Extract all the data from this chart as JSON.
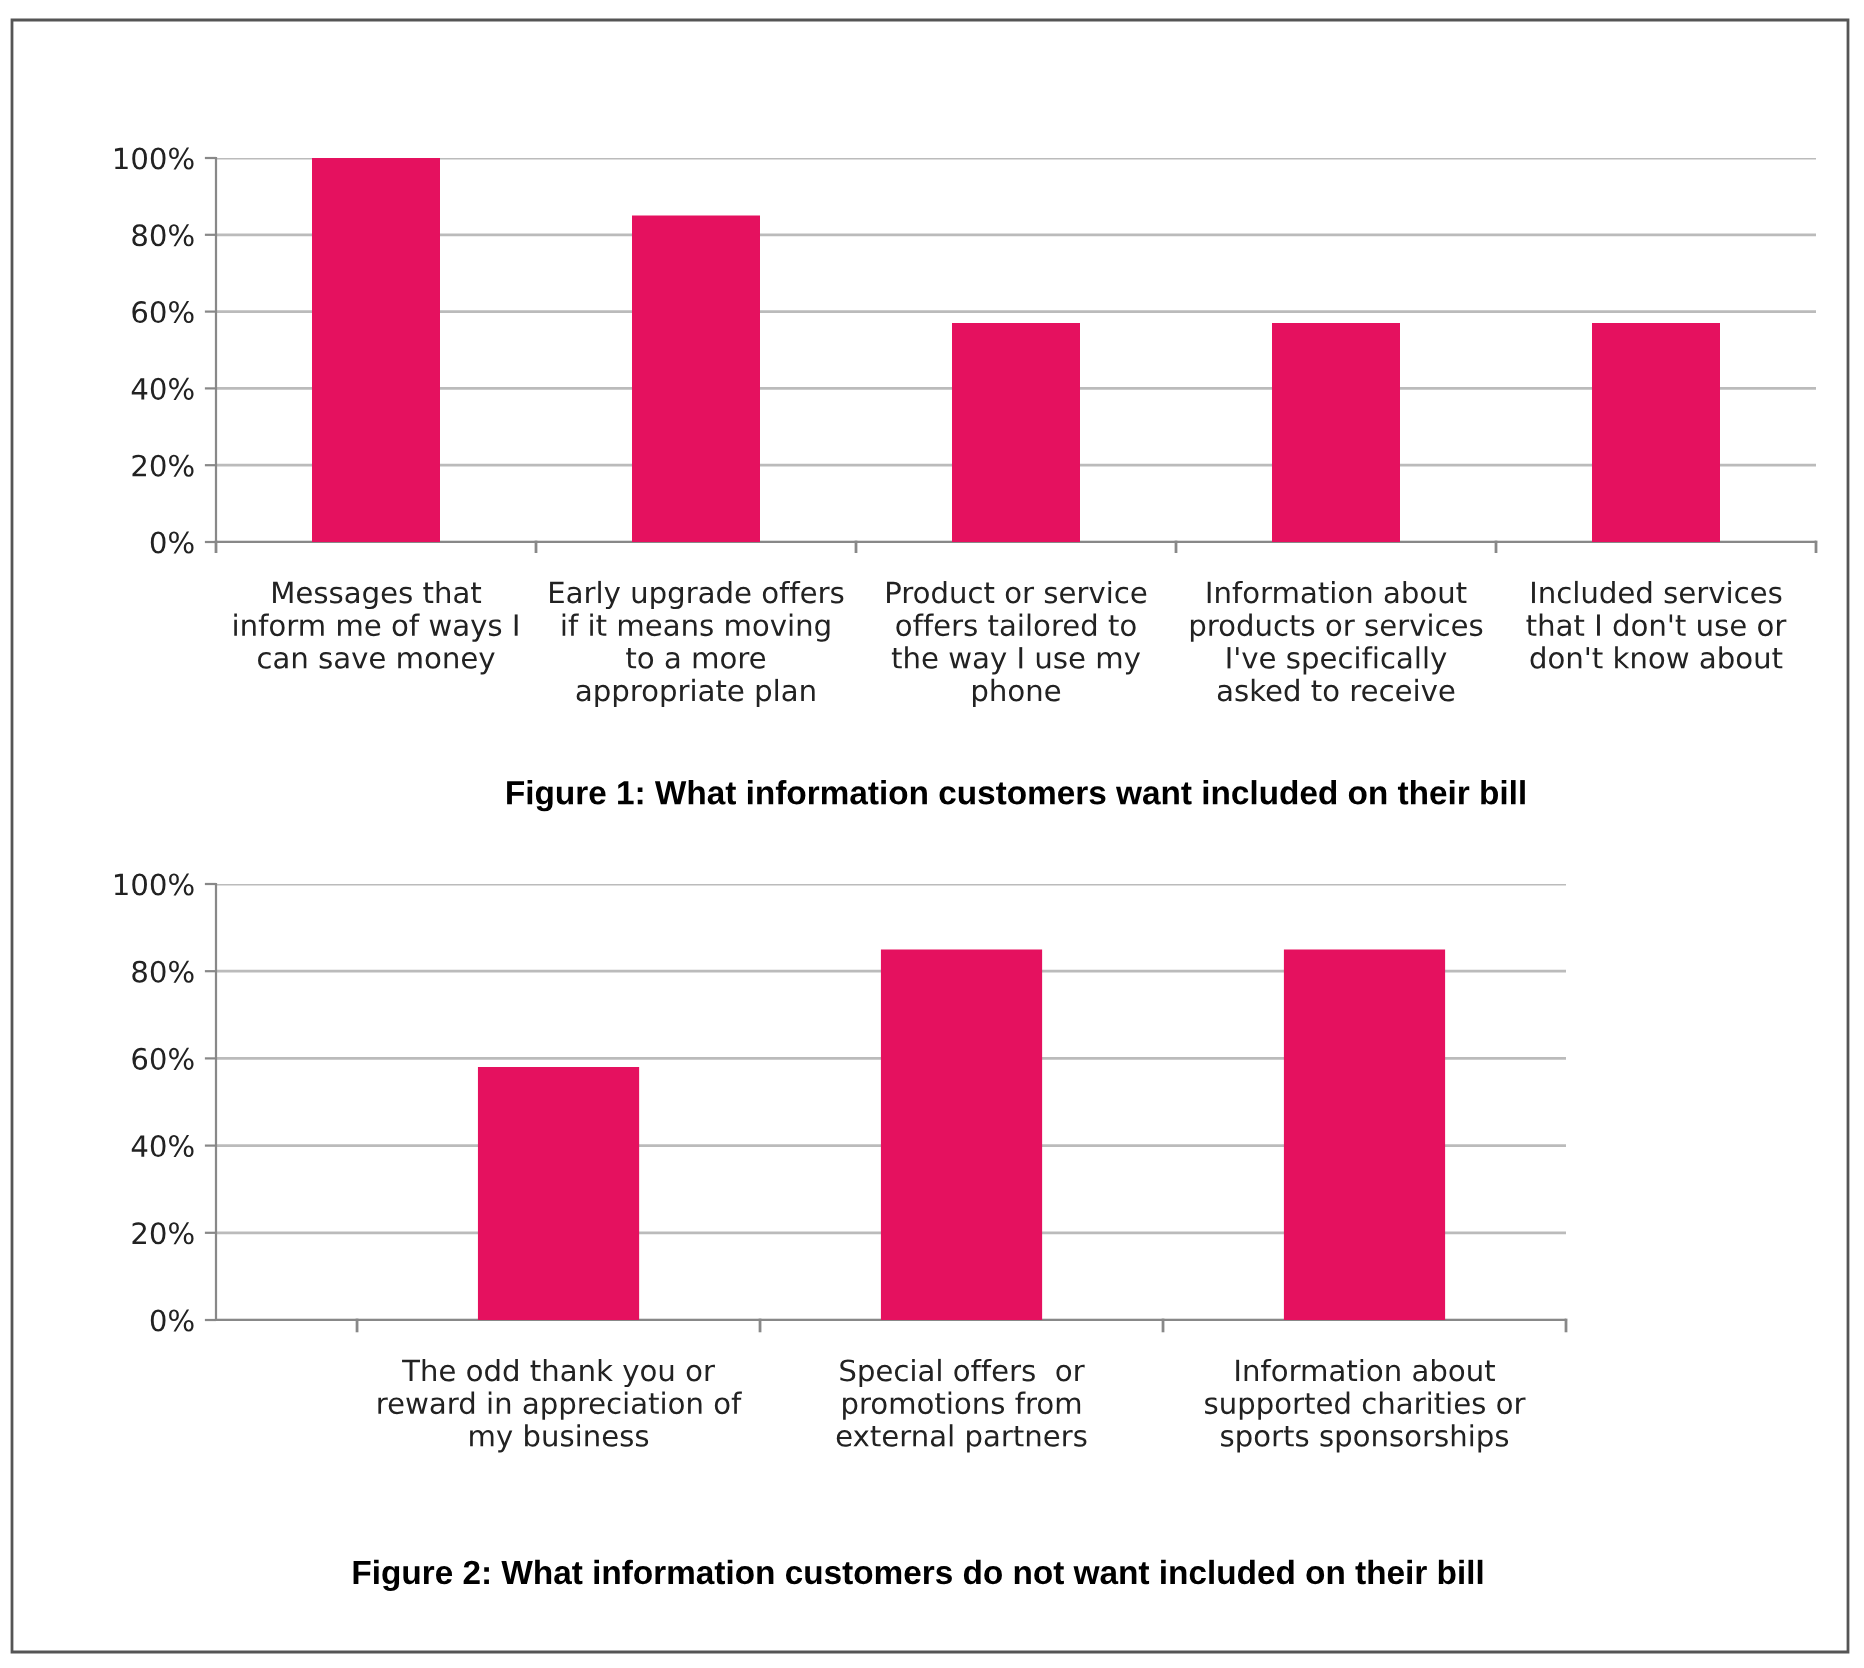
{
  "chart_data": [
    {
      "type": "bar",
      "title": "Figure 1: What information customers want included on their bill",
      "categories": [
        "Messages that\ninform me of ways I\ncan save money",
        "Early upgrade offers\nif it means moving\nto a more\nappropriate plan",
        "Product or service\noffers tailored to\nthe way I use my\nphone",
        "Information about\nproducts or services\nI've specifically\nasked to receive",
        "Included services\nthat I don't use or\ndon't know about"
      ],
      "values": [
        100,
        85,
        57,
        57,
        57
      ],
      "color": "#e5115f",
      "ylim": [
        0,
        100
      ],
      "yticks": [
        {
          "value": 0,
          "label": "0%"
        },
        {
          "value": 20,
          "label": "20%"
        },
        {
          "value": 40,
          "label": "40%"
        },
        {
          "value": 60,
          "label": "60%"
        },
        {
          "value": 80,
          "label": "80%"
        },
        {
          "value": 100,
          "label": "100%"
        }
      ],
      "grid": "y"
    },
    {
      "type": "bar",
      "title": "Figure 2: What information customers do not want included on their bill",
      "categories": [
        "The odd thank you or\nreward in appreciation of\nmy business",
        "Special offers  or\npromotions from\nexternal partners",
        "Information about\nsupported charities or\nsports sponsorships"
      ],
      "values": [
        58,
        85,
        85
      ],
      "color": "#e5115f",
      "ylim": [
        0,
        100
      ],
      "yticks": [
        {
          "value": 0,
          "label": "0%"
        },
        {
          "value": 20,
          "label": "20%"
        },
        {
          "value": 40,
          "label": "40%"
        },
        {
          "value": 60,
          "label": "60%"
        },
        {
          "value": 80,
          "label": "80%"
        },
        {
          "value": 100,
          "label": "100%"
        }
      ],
      "grid": "y"
    }
  ]
}
